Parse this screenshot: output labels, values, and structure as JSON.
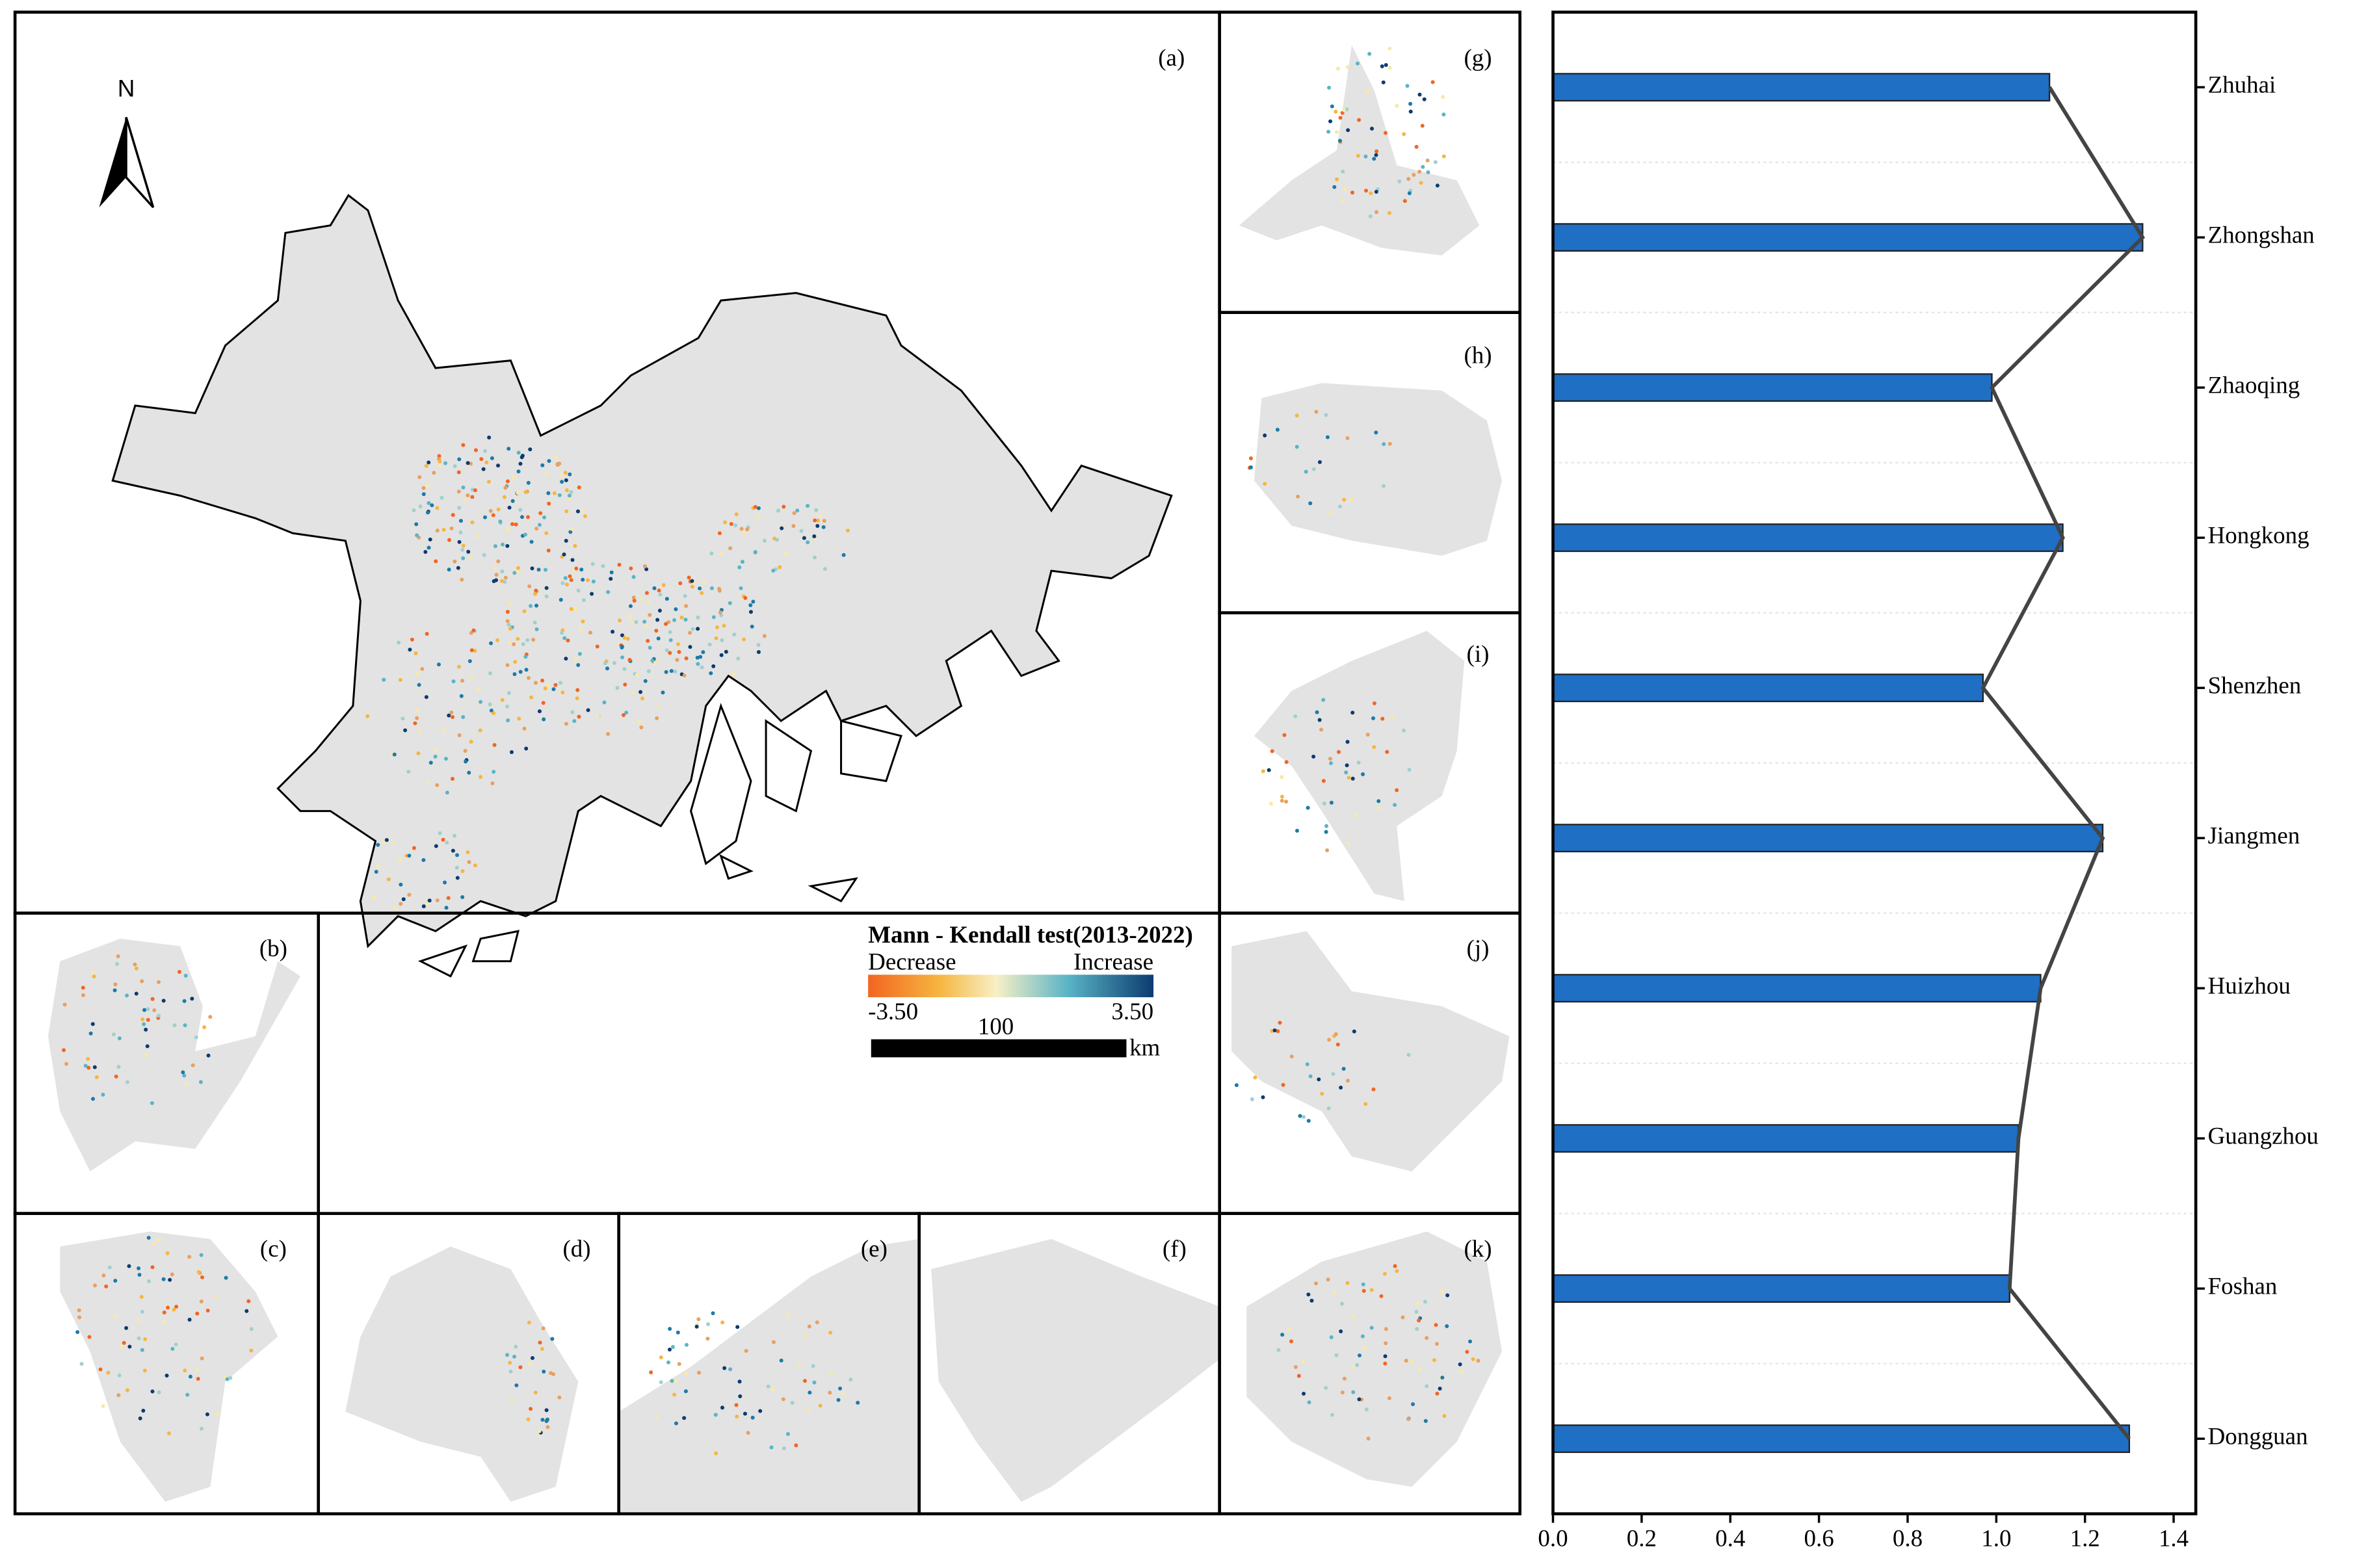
{
  "maps": {
    "north": "N",
    "panels": [
      "(a)",
      "(b)",
      "(c)",
      "(d)",
      "(e)",
      "(f)",
      "(g)",
      "(h)",
      "(i)",
      "(j)",
      "(k)"
    ],
    "legend": {
      "title": "Mann - Kendall test(2013-2022)",
      "low_text": "Decrease",
      "high_text": "Increase",
      "ticks": [
        {
          "value": -3.5,
          "label": "-3.50"
        },
        {
          "value": 3.5,
          "label": "3.50"
        }
      ]
    },
    "scale_bar": {
      "length": 100,
      "unit": "km"
    }
  },
  "chart_data": {
    "type": "barh",
    "categories": [
      "Zhuhai",
      "Zhongshan",
      "Zhaoqing",
      "Hongkong",
      "Shenzhen",
      "Jiangmen",
      "Huizhou",
      "Guangzhou",
      "Foshan",
      "Dongguan"
    ],
    "values": [
      1.12,
      1.33,
      0.99,
      1.15,
      0.97,
      1.24,
      1.1,
      1.05,
      1.03,
      1.3
    ],
    "color": "#1f6fc5",
    "line": true,
    "line_color": "#444444",
    "xlim": [
      0,
      1.45
    ],
    "xticks": [
      {
        "value": 0,
        "label": "0.0"
      },
      0.2,
      0.4,
      0.6,
      0.8,
      {
        "value": 1,
        "label": "1.0"
      },
      1.2,
      1.4
    ],
    "grid": true
  }
}
